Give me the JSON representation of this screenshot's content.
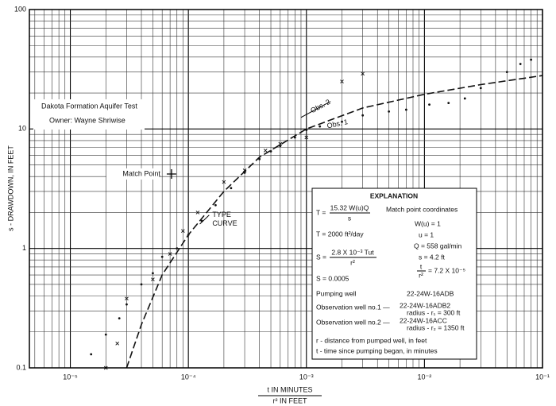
{
  "chart_data": {
    "type": "scatter",
    "log_x": true,
    "log_y": true,
    "grid": true,
    "xlim": [
      4.5e-06,
      0.1
    ],
    "xticks": [
      {
        "value": 1e-05,
        "label": "10⁻⁵"
      },
      {
        "value": 0.0001,
        "label": "10⁻⁴"
      },
      {
        "value": 0.001,
        "label": "10⁻³"
      },
      {
        "value": 0.01,
        "label": "10⁻²"
      },
      {
        "value": 0.1,
        "label": "10⁻¹"
      }
    ],
    "ylim": [
      0.1,
      100
    ],
    "yticks": [
      0.1,
      1,
      10,
      100
    ],
    "ylabel": "s - DRAWDOWN, IN FEET",
    "xlabel": {
      "numerator": "t  IN MINUTES",
      "denominator": "r²  IN FEET"
    },
    "title_box": [
      "Dakota Formation Aquifer Test",
      "Owner: Wayne Shriwise"
    ],
    "match_point": {
      "label": "Match Point",
      "x": 7.2e-05,
      "y": 4.2
    },
    "curve": {
      "name": "TYPE CURVE",
      "line1": "TYPE",
      "line2": "CURVE",
      "color": "#111",
      "x": [
        3e-05,
        4e-05,
        6e-05,
        0.0001,
        0.0002,
        0.0004,
        0.001,
        0.003,
        0.01,
        0.03,
        0.1
      ],
      "values": [
        0.1,
        0.23,
        0.6,
        1.3,
        3,
        5.8,
        10,
        15,
        19.5,
        23.5,
        28
      ]
    },
    "series": [
      {
        "name": "Obs. 1",
        "marker": "dot",
        "color": "#111",
        "x": [
          1.5e-05,
          2e-05,
          2.6e-05,
          3e-05,
          4e-05,
          5e-05,
          6e-05,
          8e-05,
          0.0001,
          0.00013,
          0.00017,
          0.00023,
          0.0003,
          0.0004,
          0.0005,
          0.0006,
          0.0008,
          0.001,
          0.0013,
          0.002,
          0.003,
          0.005,
          0.007,
          0.011,
          0.016,
          0.022,
          0.03,
          0.05,
          0.065,
          0.08
        ],
        "values": [
          0.13,
          0.19,
          0.26,
          0.34,
          0.5,
          0.62,
          0.85,
          1.0,
          1.3,
          1.7,
          2.3,
          3.2,
          4.3,
          5.6,
          6.5,
          7.2,
          8.5,
          9.8,
          10.5,
          11.5,
          13,
          14,
          14.5,
          16,
          16.5,
          18,
          22,
          30,
          35,
          38
        ]
      },
      {
        "name": "Obs. 2",
        "marker": "x",
        "color": "#111",
        "x": [
          2e-05,
          2.5e-05,
          3e-05,
          5e-05,
          7e-05,
          9e-05,
          0.00012,
          0.0002,
          0.0003,
          0.00045,
          0.0006,
          0.001,
          0.002,
          0.003
        ],
        "values": [
          0.1,
          0.16,
          0.38,
          0.55,
          0.9,
          1.4,
          2.0,
          3.6,
          4.5,
          6.6,
          7.5,
          8.5,
          25,
          29
        ]
      }
    ],
    "explanation": {
      "title": "EXPLANATION",
      "t_eq": "T =",
      "t_num": "15.32 W(u)Q",
      "t_den": "s",
      "t_val": "T = 2000 ft²/day",
      "s_eq": "S =",
      "s_num": "2.8 X 10⁻³ Tut",
      "s_den": "r²",
      "s_val": "S = 0.0005",
      "mp_title": "Match point coordinates",
      "mp": [
        "W(u) = 1",
        "u = 1",
        "Q = 558 gal/min",
        "s = 4.2 ft"
      ],
      "mp_t_num": "t",
      "mp_t_den": "r²",
      "mp_t_val": "= 7.2 X 10⁻⁵",
      "pumping": "Pumping well",
      "pumping_id": "22-24W-16ADB",
      "obs1": "Observation well no.1 —",
      "obs1_id": "22-24W-16ADB2",
      "obs1_r": "radius - r₁ = 300 ft",
      "obs2": "Observation well no.2 —",
      "obs2_id": "22-24W-16ACC",
      "obs2_r": "radius - r₂ = 1350 ft",
      "r_def": "r - distance from pumped well, in feet",
      "t_def": "t - time since pumping began, in minutes"
    }
  }
}
